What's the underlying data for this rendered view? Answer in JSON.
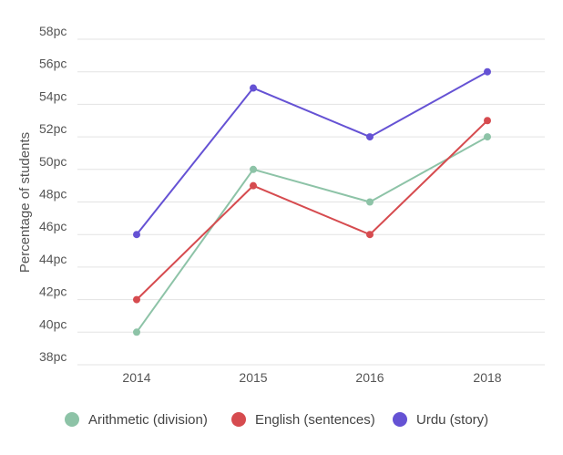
{
  "chart_data": {
    "type": "line",
    "title": "",
    "xlabel": "",
    "ylabel": "Percentage of students",
    "x": [
      "2014",
      "2015",
      "2016",
      "2018"
    ],
    "ylim": [
      38,
      58
    ],
    "yticks": [
      38,
      40,
      42,
      44,
      46,
      48,
      50,
      52,
      54,
      56,
      58
    ],
    "y_tick_labels": [
      "38pc",
      "40pc",
      "42pc",
      "44pc",
      "46pc",
      "48pc",
      "50pc",
      "52pc",
      "54pc",
      "56pc",
      "58pc"
    ],
    "grid": true,
    "legend_position": "bottom",
    "series": [
      {
        "name": "Arithmetic (division)",
        "values": [
          40,
          50,
          48,
          52
        ],
        "color": "#8dc3a7"
      },
      {
        "name": "English (sentences)",
        "values": [
          42,
          49,
          46,
          53
        ],
        "color": "#d64b4f"
      },
      {
        "name": "Urdu (story)",
        "values": [
          46,
          55,
          52,
          56
        ],
        "color": "#6552d4"
      }
    ]
  }
}
